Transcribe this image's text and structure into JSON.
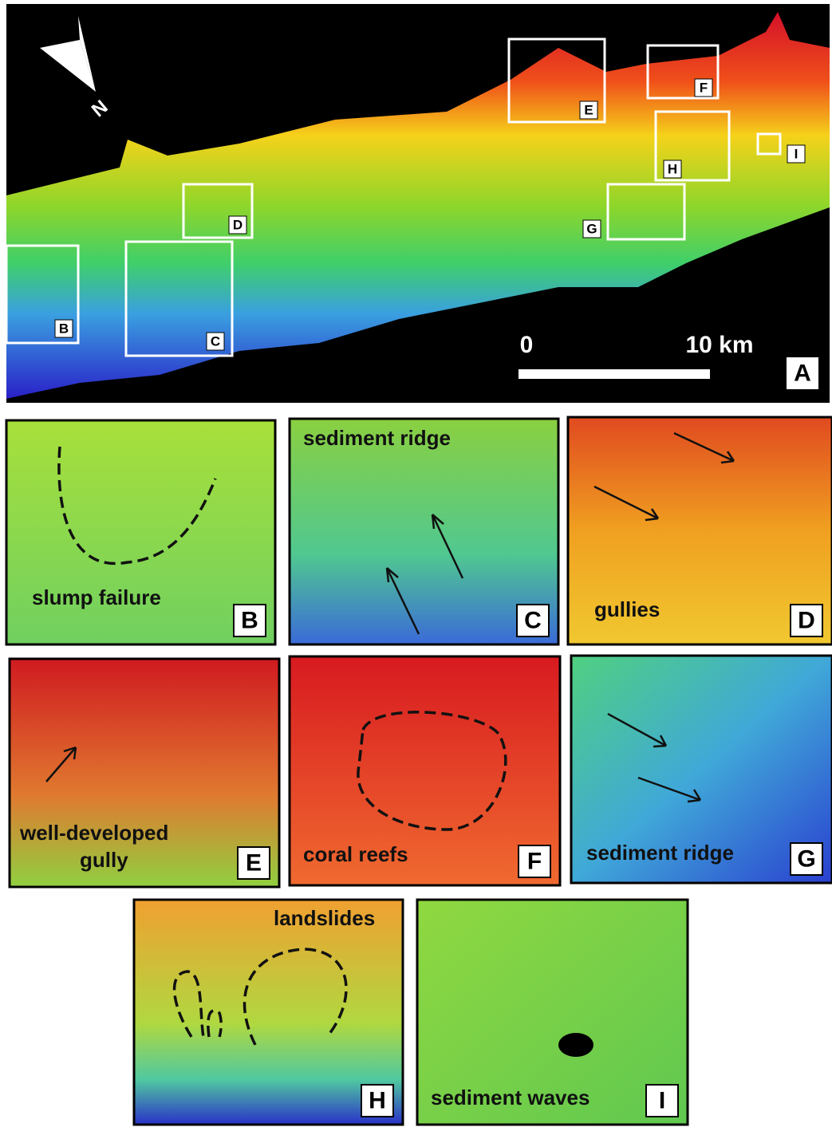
{
  "main_panel": {
    "label": "A",
    "north": "N",
    "scale_bar": {
      "start": "0",
      "end": "10 km"
    },
    "boxes": [
      {
        "label": "B"
      },
      {
        "label": "C"
      },
      {
        "label": "D"
      },
      {
        "label": "E"
      },
      {
        "label": "F"
      },
      {
        "label": "G"
      },
      {
        "label": "H"
      },
      {
        "label": "I"
      }
    ]
  },
  "panels": [
    {
      "label": "B",
      "caption": [
        "slump failure"
      ]
    },
    {
      "label": "C",
      "caption": [
        "sediment ridge"
      ]
    },
    {
      "label": "D",
      "caption": [
        "gullies"
      ]
    },
    {
      "label": "E",
      "caption": [
        "well-developed",
        "gully"
      ]
    },
    {
      "label": "F",
      "caption": [
        "coral reefs"
      ]
    },
    {
      "label": "G",
      "caption": [
        "sediment ridge"
      ]
    },
    {
      "label": "H",
      "caption": [
        "landslides"
      ]
    },
    {
      "label": "I",
      "caption": [
        "sediment waves"
      ]
    }
  ]
}
